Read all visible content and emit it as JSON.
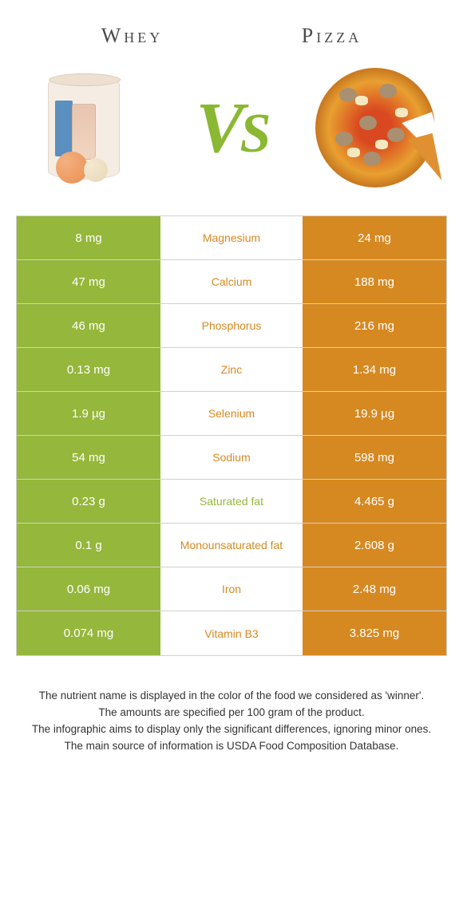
{
  "header": {
    "left": "Whey",
    "right": "Pizza"
  },
  "vs": {
    "v": "V",
    "s": "S"
  },
  "colors": {
    "whey": "#95b73b",
    "pizza": "#d68921",
    "loser_text": "#888888",
    "border": "#d0d0d0"
  },
  "rows": [
    {
      "left": "8 mg",
      "label": "Magnesium",
      "right": "24 mg",
      "winner": "pizza"
    },
    {
      "left": "47 mg",
      "label": "Calcium",
      "right": "188 mg",
      "winner": "pizza"
    },
    {
      "left": "46 mg",
      "label": "Phosphorus",
      "right": "216 mg",
      "winner": "pizza"
    },
    {
      "left": "0.13 mg",
      "label": "Zinc",
      "right": "1.34 mg",
      "winner": "pizza"
    },
    {
      "left": "1.9 µg",
      "label": "Selenium",
      "right": "19.9 µg",
      "winner": "pizza"
    },
    {
      "left": "54 mg",
      "label": "Sodium",
      "right": "598 mg",
      "winner": "pizza"
    },
    {
      "left": "0.23 g",
      "label": "Saturated fat",
      "right": "4.465 g",
      "winner": "whey"
    },
    {
      "left": "0.1 g",
      "label": "Monounsaturated fat",
      "right": "2.608 g",
      "winner": "pizza"
    },
    {
      "left": "0.06 mg",
      "label": "Iron",
      "right": "2.48 mg",
      "winner": "pizza"
    },
    {
      "left": "0.074 mg",
      "label": "Vitamin B3",
      "right": "3.825 mg",
      "winner": "pizza"
    }
  ],
  "footnotes": [
    "The nutrient name is displayed in the color of the food we considered as 'winner'.",
    "The amounts are specified per 100 gram of the product.",
    "The infographic aims to display only the significant differences, ignoring minor ones.",
    "The main source of information is USDA Food Composition Database."
  ]
}
